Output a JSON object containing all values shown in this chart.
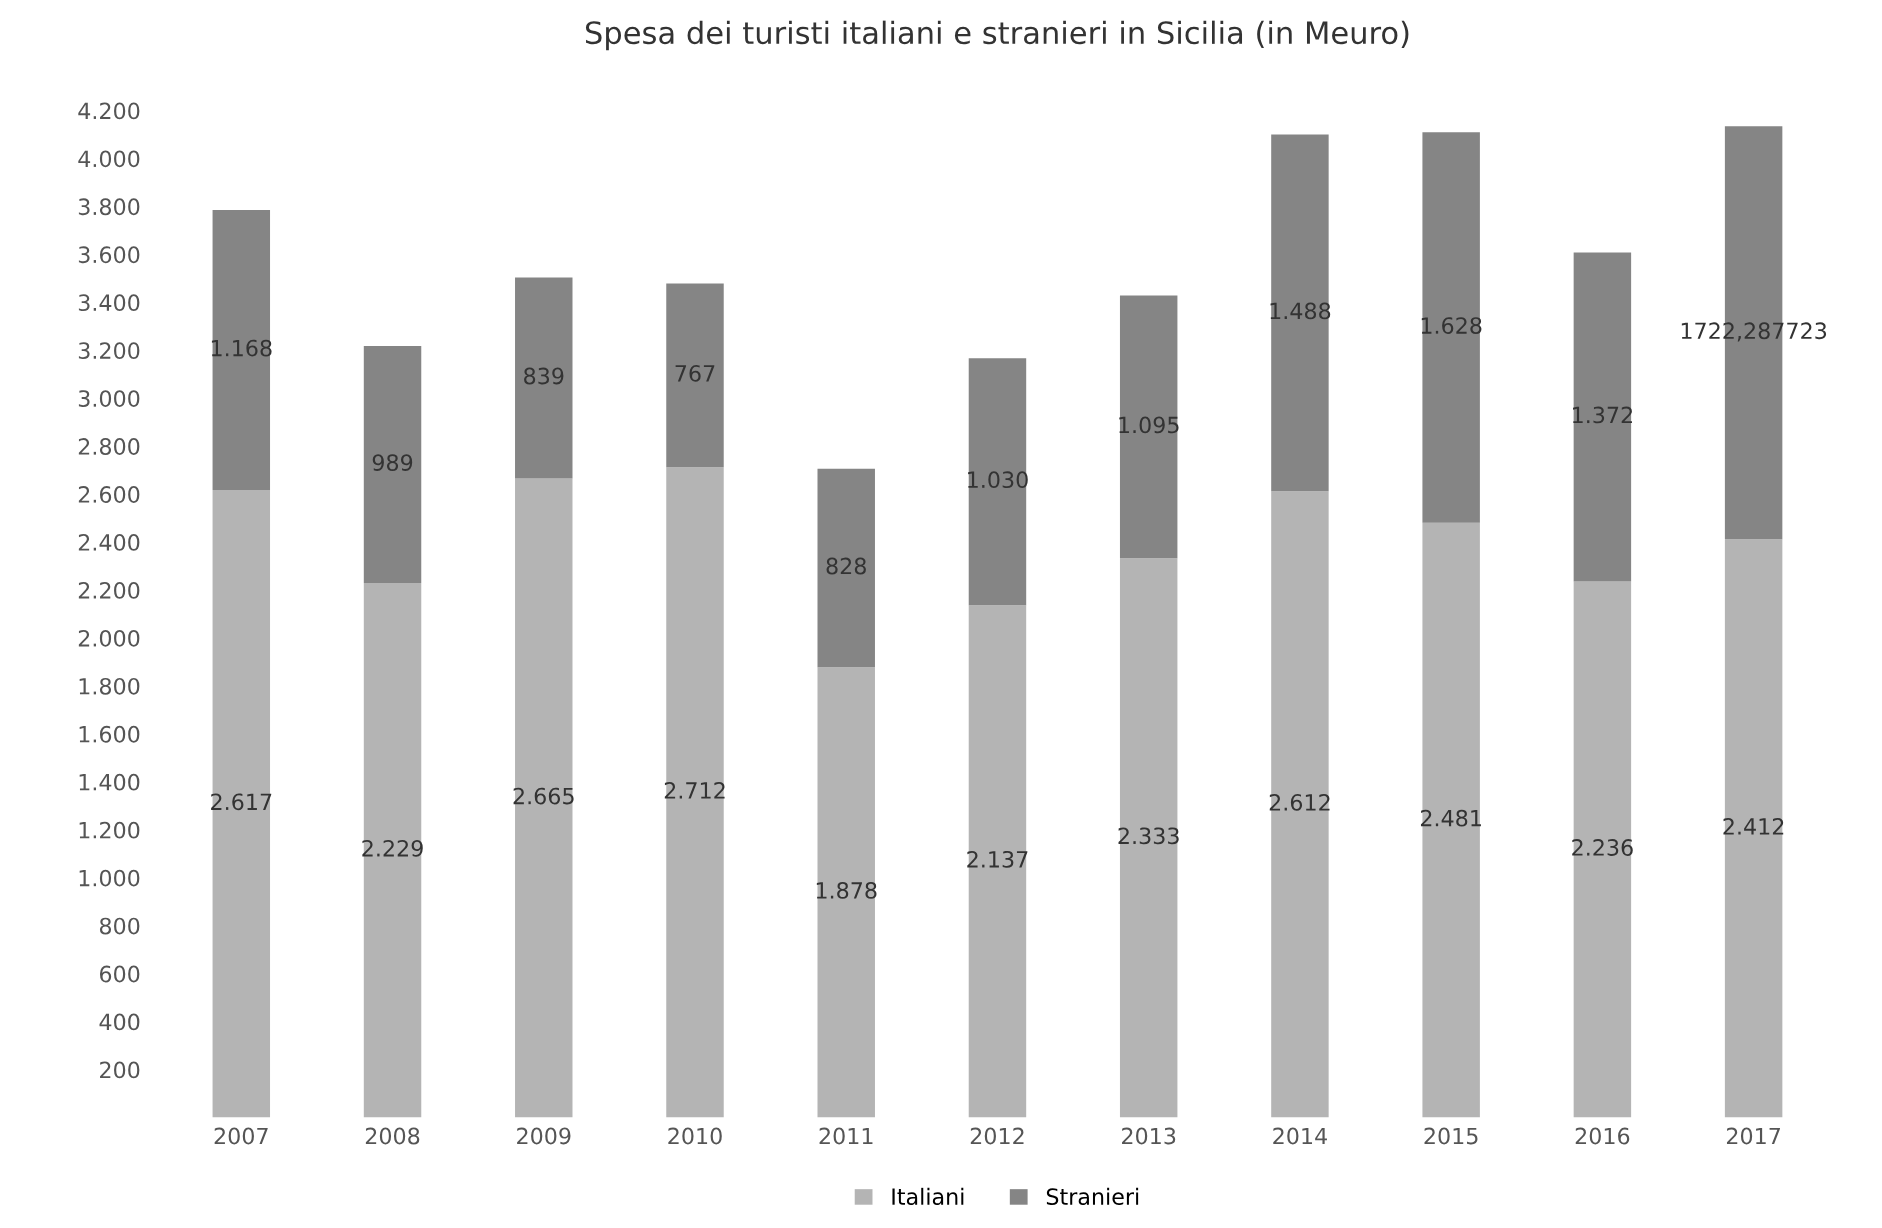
{
  "chart_data": {
    "type": "bar",
    "stacked": true,
    "title": "Spesa dei turisti italiani e stranieri in Sicilia (in Meuro)",
    "categories": [
      "2007",
      "2008",
      "2009",
      "2010",
      "2011",
      "2012",
      "2013",
      "2014",
      "2015",
      "2016",
      "2017"
    ],
    "series": [
      {
        "name": "Italiani",
        "color": "#b4b4b4",
        "values": [
          2617,
          2229,
          2665,
          2712,
          1878,
          2137,
          2333,
          2612,
          2481,
          2236,
          2412
        ],
        "value_labels": [
          "2.617",
          "2.229",
          "2.665",
          "2.712",
          "1.878",
          "2.137",
          "2.333",
          "2.612",
          "2.481",
          "2.236",
          "2.412"
        ]
      },
      {
        "name": "Stranieri",
        "color": "#858585",
        "values": [
          1168,
          989,
          839,
          767,
          828,
          1030,
          1095,
          1488,
          1628,
          1372,
          1722.287723
        ],
        "value_labels": [
          "1.168",
          "989",
          "839",
          "767",
          "828",
          "1.030",
          "1.095",
          "1.488",
          "1.628",
          "1.372",
          "1722,287723"
        ]
      }
    ],
    "ylim": [
      0,
      4200
    ],
    "yticks": [
      {
        "value": 200,
        "label": "200"
      },
      {
        "value": 400,
        "label": "400"
      },
      {
        "value": 600,
        "label": "600"
      },
      {
        "value": 800,
        "label": "800"
      },
      {
        "value": 1000,
        "label": "1.000"
      },
      {
        "value": 1200,
        "label": "1.200"
      },
      {
        "value": 1400,
        "label": "1.400"
      },
      {
        "value": 1600,
        "label": "1.600"
      },
      {
        "value": 1800,
        "label": "1.800"
      },
      {
        "value": 2000,
        "label": "2.000"
      },
      {
        "value": 2200,
        "label": "2.200"
      },
      {
        "value": 2400,
        "label": "2.400"
      },
      {
        "value": 2600,
        "label": "2.600"
      },
      {
        "value": 2800,
        "label": "2.800"
      },
      {
        "value": 3000,
        "label": "3.000"
      },
      {
        "value": 3200,
        "label": "3.200"
      },
      {
        "value": 3400,
        "label": "3.400"
      },
      {
        "value": 3600,
        "label": "3.600"
      },
      {
        "value": 3800,
        "label": "3.800"
      },
      {
        "value": 4000,
        "label": "4.000"
      },
      {
        "value": 4200,
        "label": "4.200"
      }
    ],
    "grid": false,
    "legend": "bottom"
  }
}
